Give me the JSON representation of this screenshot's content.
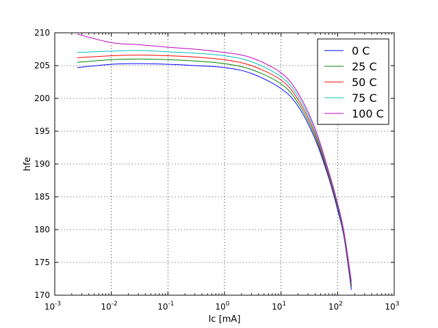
{
  "chart_data": {
    "type": "line",
    "xlabel": "Ic [mA]",
    "ylabel": "hfe",
    "xscale": "log",
    "xlim": [
      0.001,
      1000
    ],
    "ylim": [
      170,
      210
    ],
    "grid": true,
    "legend_position": "top-right",
    "x_ticks": [
      {
        "base": "10",
        "exp": "-3"
      },
      {
        "base": "10",
        "exp": "-2"
      },
      {
        "base": "10",
        "exp": "-1"
      },
      {
        "base": "10",
        "exp": "0"
      },
      {
        "base": "10",
        "exp": "1"
      },
      {
        "base": "10",
        "exp": "2"
      },
      {
        "base": "10",
        "exp": "3"
      }
    ],
    "y_ticks": [
      "170",
      "175",
      "180",
      "185",
      "190",
      "195",
      "200",
      "205",
      "210"
    ],
    "x": [
      0.0025,
      0.01,
      0.03,
      0.1,
      0.3,
      1,
      3,
      10,
      20,
      40,
      70,
      100,
      130,
      175
    ],
    "series": [
      {
        "name": "0 C",
        "color": "#0000ff",
        "values": [
          204.7,
          205.2,
          205.3,
          205.2,
          205.0,
          204.7,
          203.8,
          201.5,
          198.8,
          193.8,
          187.8,
          183.0,
          178.8,
          170.8
        ]
      },
      {
        "name": "25 C",
        "color": "#008000",
        "values": [
          205.5,
          205.9,
          206.0,
          205.9,
          205.7,
          205.3,
          204.4,
          202.2,
          199.3,
          194.2,
          188.0,
          183.3,
          179.0,
          171.2
        ]
      },
      {
        "name": "50 C",
        "color": "#ff0000",
        "values": [
          206.2,
          206.5,
          206.6,
          206.5,
          206.3,
          205.9,
          205.0,
          202.8,
          199.8,
          194.6,
          188.2,
          183.5,
          179.2,
          171.5
        ]
      },
      {
        "name": "75 C",
        "color": "#00bfbf",
        "values": [
          207.0,
          207.2,
          207.3,
          207.1,
          206.9,
          206.5,
          205.6,
          203.3,
          200.3,
          195.0,
          188.5,
          183.7,
          179.4,
          171.8
        ]
      },
      {
        "name": "100 C",
        "color": "#bf00bf",
        "values": [
          209.8,
          208.5,
          208.2,
          207.8,
          207.5,
          207.0,
          206.2,
          203.9,
          200.8,
          195.4,
          188.8,
          184.0,
          179.6,
          172.1
        ]
      }
    ]
  }
}
